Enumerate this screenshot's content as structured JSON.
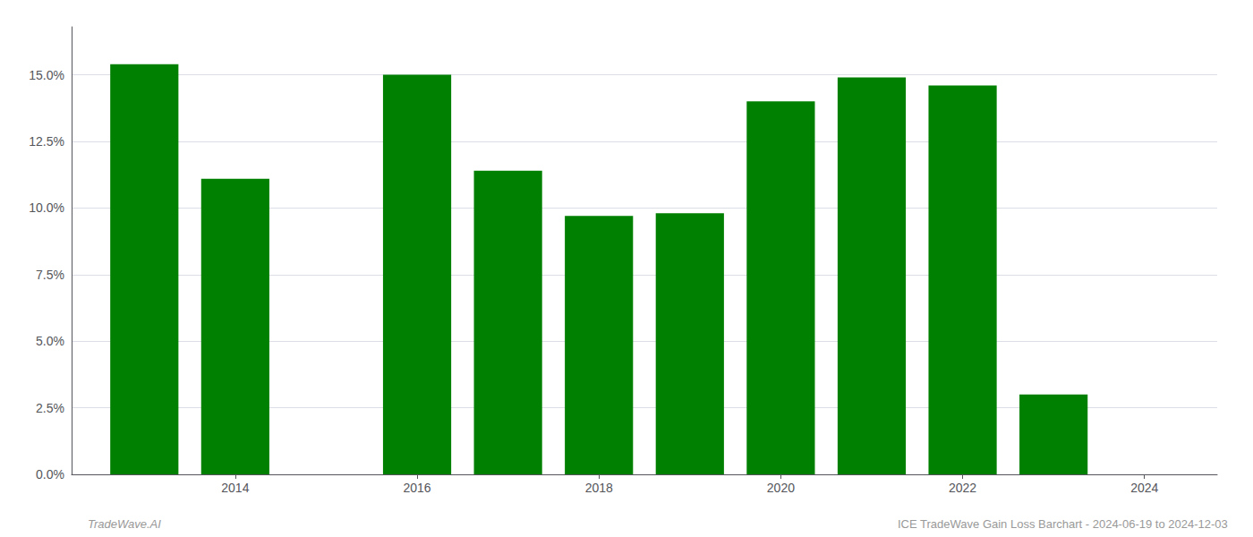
{
  "chart_data": {
    "type": "bar",
    "x": [
      2013,
      2014,
      2016,
      2017,
      2018,
      2019,
      2020,
      2021,
      2022,
      2023
    ],
    "values": [
      0.154,
      0.111,
      0.15,
      0.114,
      0.097,
      0.098,
      0.14,
      0.149,
      0.146,
      0.03
    ],
    "color": "#008000",
    "xlim": [
      2012.2,
      2024.8
    ],
    "xticks": [
      2014,
      2016,
      2018,
      2020,
      2022,
      2024
    ],
    "ylim": [
      0,
      0.168
    ],
    "yticks": [
      {
        "value": 0.0,
        "label": "0.0%"
      },
      {
        "value": 0.025,
        "label": "2.5%"
      },
      {
        "value": 0.05,
        "label": "5.0%"
      },
      {
        "value": 0.075,
        "label": "7.5%"
      },
      {
        "value": 0.1,
        "label": "10.0%"
      },
      {
        "value": 0.125,
        "label": "12.5%"
      },
      {
        "value": 0.15,
        "label": "15.0%"
      }
    ],
    "grid": true,
    "annotations": [
      "TradeWave.AI",
      "ICE TradeWave Gain Loss Barchart - 2024-06-19 to 2024-12-03"
    ]
  }
}
